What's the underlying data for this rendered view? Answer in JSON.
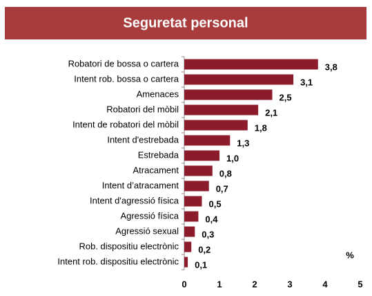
{
  "chart_data": {
    "type": "barh",
    "title": "Seguretat personal",
    "categories": [
      "Robatori de bossa o cartera",
      "Intent rob. bossa o cartera",
      "Amenaces",
      "Robatori del mòbil",
      "Intent de robatori del mòbil",
      "Intent d'estrebada",
      "Estrebada",
      "Atracament",
      "Intent d’atracament",
      "Intent d'agressió física",
      "Agressió física",
      "Agressió sexual",
      "Rob. dispositiu electrònic",
      "Intent rob. dispositiu electrònic"
    ],
    "values": [
      3.8,
      3.1,
      2.5,
      2.1,
      1.8,
      1.3,
      1.0,
      0.8,
      0.7,
      0.5,
      0.4,
      0.3,
      0.2,
      0.1
    ],
    "value_labels": [
      "3,8",
      "3,1",
      "2,5",
      "2,1",
      "1,8",
      "1,3",
      "1,0",
      "0,8",
      "0,7",
      "0,5",
      "0,4",
      "0,3",
      "0,2",
      "0,1"
    ],
    "color": "#8c1c2c",
    "title_color": "#a83c3c",
    "xlim": [
      0,
      5
    ],
    "xticks": [
      0,
      1,
      2,
      3,
      4,
      5
    ],
    "annotation": "%"
  }
}
